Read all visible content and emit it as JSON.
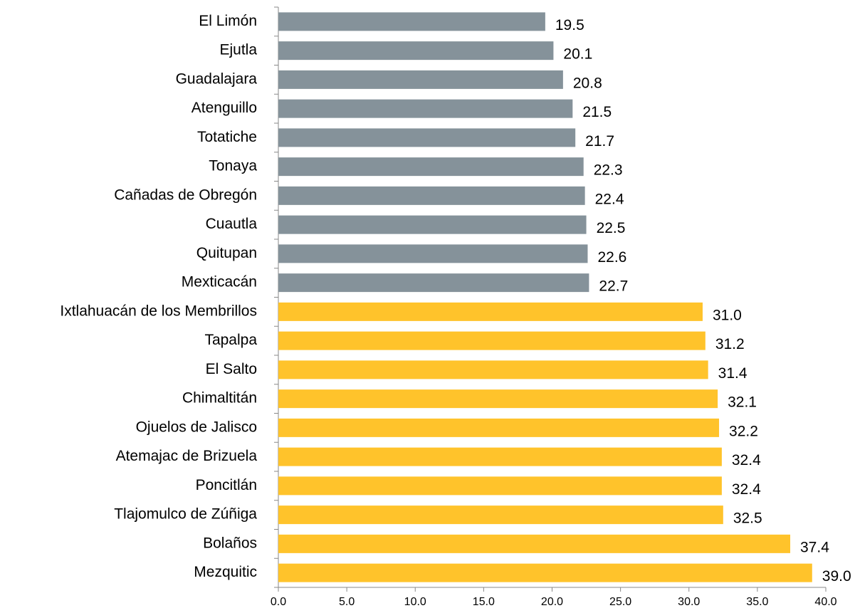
{
  "chart_data": {
    "type": "hbar",
    "categories": [
      "El Limón",
      "Ejutla",
      "Guadalajara",
      "Atenguillo",
      "Totatiche",
      "Tonaya",
      "Cañadas de Obregón",
      "Cuautla",
      "Quitupan",
      "Mexticacán",
      "Ixtlahuacán de los Membrillos",
      "Tapalpa",
      "El Salto",
      "Chimaltitán",
      "Ojuelos de Jalisco",
      "Atemajac de Brizuela",
      "Poncitlán",
      "Tlajomulco de Zúñiga",
      "Bolaños",
      "Mezquitic"
    ],
    "values": [
      19.5,
      20.1,
      20.8,
      21.5,
      21.7,
      22.3,
      22.4,
      22.5,
      22.6,
      22.7,
      31.0,
      31.2,
      31.4,
      32.1,
      32.2,
      32.4,
      32.4,
      32.5,
      37.4,
      39.0
    ],
    "value_labels": [
      "19.5",
      "20.1",
      "20.8",
      "21.5",
      "21.7",
      "22.3",
      "22.4",
      "22.5",
      "22.6",
      "22.7",
      "31.0",
      "31.2",
      "31.4",
      "32.1",
      "32.2",
      "32.4",
      "32.4",
      "32.5",
      "37.4",
      "39.0"
    ],
    "colors": [
      "#85929a",
      "#85929a",
      "#85929a",
      "#85929a",
      "#85929a",
      "#85929a",
      "#85929a",
      "#85929a",
      "#85929a",
      "#85929a",
      "#ffc32b",
      "#ffc32b",
      "#ffc32b",
      "#ffc32b",
      "#ffc32b",
      "#ffc32b",
      "#ffc32b",
      "#ffc32b",
      "#ffc32b",
      "#ffc32b"
    ],
    "xlim": [
      0,
      40
    ],
    "xticks": [
      {
        "value": 0,
        "label": "0.0"
      },
      {
        "value": 5,
        "label": "5.0"
      },
      {
        "value": 10,
        "label": "10.0"
      },
      {
        "value": 15,
        "label": "15.0"
      },
      {
        "value": 20,
        "label": "20.0"
      },
      {
        "value": 25,
        "label": "25.0"
      },
      {
        "value": 30,
        "label": "30.0"
      },
      {
        "value": 35,
        "label": "35.0"
      },
      {
        "value": 40,
        "label": "40.0"
      }
    ]
  }
}
